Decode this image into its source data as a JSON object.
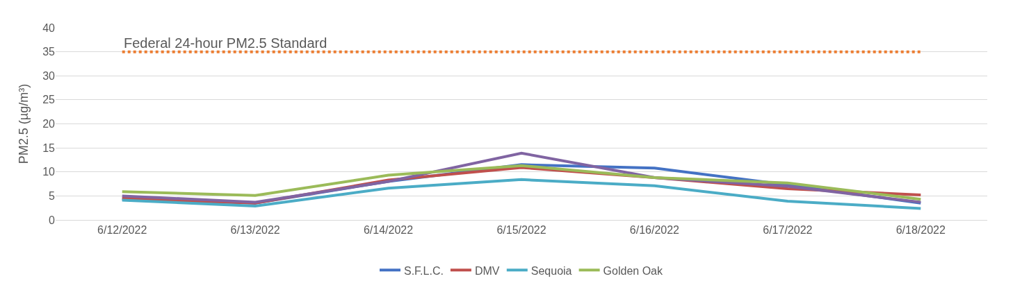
{
  "chart_data": {
    "type": "line",
    "ylabel": "PM2.5 (µg/m³)",
    "categories": [
      "6/12/2022",
      "6/13/2022",
      "6/14/2022",
      "6/15/2022",
      "6/16/2022",
      "6/17/2022",
      "6/18/2022"
    ],
    "series": [
      {
        "name": "S.F.L.C.",
        "color": "#4472c4",
        "values": [
          4.3,
          3.5,
          8.0,
          11.5,
          10.8,
          7.3,
          3.5
        ]
      },
      {
        "name": "DMV",
        "color": "#c0504d",
        "values": [
          4.5,
          3.5,
          8.3,
          10.9,
          8.8,
          6.5,
          5.2
        ]
      },
      {
        "color": "#8064a2",
        "values": [
          5.0,
          3.7,
          8.0,
          13.9,
          8.8,
          7.0,
          3.7
        ]
      },
      {
        "name": "Sequoia",
        "color": "#4bacc6",
        "values": [
          4.1,
          2.9,
          6.6,
          8.4,
          7.1,
          3.9,
          2.4
        ]
      },
      {
        "name": "Golden Oak",
        "color": "#9bbb59",
        "values": [
          5.9,
          5.1,
          9.3,
          11.3,
          8.8,
          7.7,
          4.3
        ]
      }
    ],
    "ref_lines": [
      {
        "axis": "y",
        "value": 35,
        "label": "Federal 24-hour PM2.5 Standard",
        "color": "#ed7d31",
        "line_style": "dotted"
      }
    ],
    "ylim": [
      0,
      40
    ],
    "yticks": [
      0,
      5,
      10,
      15,
      20,
      25,
      30,
      35,
      40
    ],
    "grid": "y",
    "legend": "bottom",
    "line_style": "solid",
    "marker": "none"
  }
}
